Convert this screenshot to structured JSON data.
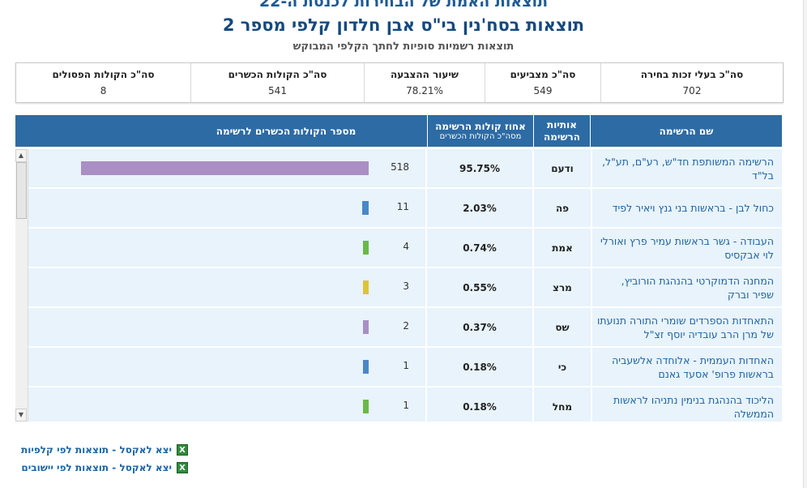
{
  "header": {
    "top_title": "תוצאות האמת של הבחירות לכנסת ה-22",
    "main_title": "תוצאות בסח'נין בי\"ס אבן חלדון קלפי מספר 2",
    "sub_title": "תוצאות רשמיות סופיות לחתך הקלפי המבוקש"
  },
  "summary": [
    {
      "label": "סה\"כ בעלי זכות בחירה",
      "value": "702"
    },
    {
      "label": "סה\"כ מצביעים",
      "value": "549"
    },
    {
      "label": "שיעור ההצבעה",
      "value": "78.21%"
    },
    {
      "label": "סה\"כ הקולות הכשרים",
      "value": "541"
    },
    {
      "label": "סה\"כ הקולות הפסולים",
      "value": "8"
    }
  ],
  "table": {
    "headers": {
      "list_name": "שם הרשימה",
      "letters": "אותיות הרשימה",
      "pct": "אחוז קולות הרשימה",
      "pct_sub": "מסה\"כ הקולות הכשרים",
      "votes": "מספר הקולות הכשרים לרשימה"
    },
    "rows": [
      {
        "name": "הרשימה המשותפת חד\"ש, רע\"ם, תע\"ל, בל\"ד",
        "letters": "ודעם",
        "pct": "95.75%",
        "votes": "518",
        "color": "#a98fc4"
      },
      {
        "name": "כחול לבן - בראשות בני גנץ ויאיר לפיד",
        "letters": "פה",
        "pct": "2.03%",
        "votes": "11",
        "color": "#4b87c6"
      },
      {
        "name": "העבודה - גשר בראשות עמיר פרץ ואורלי לוי אבקסיס",
        "letters": "אמת",
        "pct": "0.74%",
        "votes": "4",
        "color": "#6cb84a"
      },
      {
        "name": "המחנה הדמוקרטי בהנהגת הורוביץ, שפיר וברק",
        "letters": "מרצ",
        "pct": "0.55%",
        "votes": "3",
        "color": "#dcc33a"
      },
      {
        "name": "התאחדות הספרדים שומרי התורה תנועתו של מרן הרב עובדיה יוסף זצ\"ל",
        "letters": "שס",
        "pct": "0.37%",
        "votes": "2",
        "color": "#a98fc4"
      },
      {
        "name": "האחדות העממית - אלוחדה אלשעביה בראשות פרופ' אסעד גאנם",
        "letters": "כי",
        "pct": "0.18%",
        "votes": "1",
        "color": "#4b87c6"
      },
      {
        "name": "הליכוד בהנהגת בנימין נתניהו לראשות הממשלה",
        "letters": "מחל",
        "pct": "0.18%",
        "votes": "1",
        "color": "#6cb84a"
      }
    ]
  },
  "links": {
    "excel_by_ballot": "יצא לאקסל - תוצאות לפי קלפיות",
    "excel_by_locality": "יצא לאקסל - תוצאות לפי יישובים"
  },
  "icons": {
    "excel": "excel-file-icon",
    "scroll_up": "arrow-up-icon",
    "scroll_down": "arrow-down-icon"
  }
}
